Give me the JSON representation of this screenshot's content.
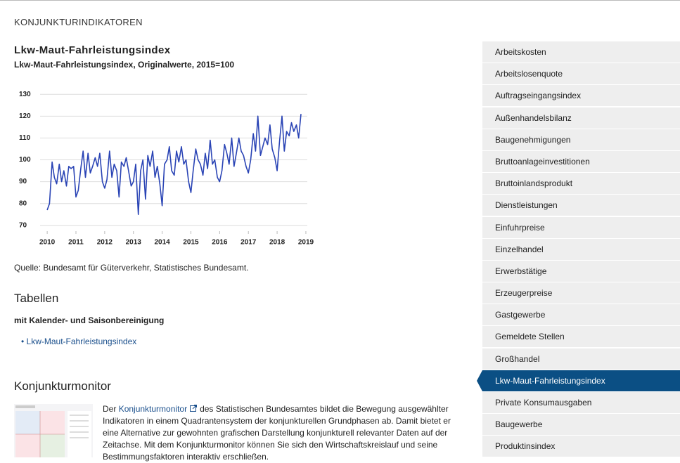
{
  "header": {
    "kicker": "KONJUNKTURINDIKATOREN"
  },
  "chart_data": {
    "type": "line",
    "title": "Lkw-Maut-Fahrleistungsindex",
    "subtitle": "Lkw-Maut-Fahrleistungsindex, Originalwerte, 2015=100",
    "x": [
      2010,
      2010.08,
      2010.17,
      2010.25,
      2010.33,
      2010.42,
      2010.5,
      2010.58,
      2010.67,
      2010.75,
      2010.83,
      2010.92,
      2011,
      2011.08,
      2011.17,
      2011.25,
      2011.33,
      2011.42,
      2011.5,
      2011.58,
      2011.67,
      2011.75,
      2011.83,
      2011.92,
      2012,
      2012.08,
      2012.17,
      2012.25,
      2012.33,
      2012.42,
      2012.5,
      2012.58,
      2012.67,
      2012.75,
      2012.83,
      2012.92,
      2013,
      2013.08,
      2013.17,
      2013.25,
      2013.33,
      2013.42,
      2013.5,
      2013.58,
      2013.67,
      2013.75,
      2013.83,
      2013.92,
      2014,
      2014.08,
      2014.17,
      2014.25,
      2014.33,
      2014.42,
      2014.5,
      2014.58,
      2014.67,
      2014.75,
      2014.83,
      2014.92,
      2015,
      2015.08,
      2015.17,
      2015.25,
      2015.33,
      2015.42,
      2015.5,
      2015.58,
      2015.67,
      2015.75,
      2015.83,
      2015.92,
      2016,
      2016.08,
      2016.17,
      2016.25,
      2016.33,
      2016.42,
      2016.5,
      2016.58,
      2016.67,
      2016.75,
      2016.83,
      2016.92,
      2017,
      2017.08,
      2017.17,
      2017.25,
      2017.33,
      2017.42,
      2017.5,
      2017.58,
      2017.67,
      2017.75,
      2017.83,
      2017.92,
      2018,
      2018.08,
      2018.17,
      2018.25,
      2018.33,
      2018.42,
      2018.5,
      2018.58,
      2018.67,
      2018.75,
      2018.83
    ],
    "series": [
      {
        "name": "Lkw-Maut-Fahrleistungsindex",
        "color": "#2a44b5",
        "values": [
          77,
          80,
          99,
          92,
          89,
          98,
          90,
          95,
          88,
          97,
          96,
          97,
          83,
          86,
          96,
          104,
          92,
          103,
          94,
          97,
          101,
          97,
          103,
          90,
          87,
          91,
          104,
          92,
          98,
          95,
          83,
          99,
          97,
          101,
          95,
          88,
          90,
          98,
          75,
          95,
          100,
          82,
          102,
          97,
          104,
          92,
          97,
          89,
          79,
          98,
          100,
          106,
          95,
          93,
          104,
          99,
          106,
          98,
          100,
          90,
          85,
          95,
          105,
          100,
          98,
          93,
          103,
          96,
          109,
          98,
          100,
          92,
          90,
          95,
          107,
          103,
          98,
          110,
          97,
          103,
          110,
          104,
          102,
          97,
          94,
          100,
          112,
          104,
          120,
          102,
          106,
          110,
          107,
          116,
          105,
          101,
          95,
          108,
          120,
          104,
          113,
          111,
          117,
          113,
          116,
          110,
          121
        ]
      }
    ],
    "xlim": [
      2009.85,
      2019.05
    ],
    "xticks": [
      2010,
      2011,
      2012,
      2013,
      2014,
      2015,
      2016,
      2017,
      2018,
      2019
    ],
    "ylim": [
      68,
      132
    ],
    "yticks": [
      70,
      80,
      90,
      100,
      110,
      120,
      130
    ],
    "grid": true
  },
  "source": "Quelle: Bundesamt für Güterverkehr, Statistisches Bundesamt.",
  "tables": {
    "heading": "Tabellen",
    "subheading": "mit Kalender- und Saisonbereinigung",
    "links": [
      "Lkw-Maut-Fahrleistungsindex"
    ]
  },
  "monitor": {
    "heading": "Konjunkturmonitor",
    "before": "Der",
    "link": "Konjunkturmonitor",
    "lines": [
      "des Statistischen Bundesamtes bildet die Bewegung ausgewählter",
      "Indikatoren in einem Quadrantensystem der konjunkturellen Grundphasen ab. Damit bietet er",
      "eine Alternative zur gewohnten grafischen Darstellung konjunkturell relevanter Daten auf der",
      "Zeitachse. Mit dem Konjunkturmonitor können Sie sich den Wirtschaftskreislauf und seine",
      "Bestimmungsfaktoren interaktiv erschließen."
    ]
  },
  "sidebar": [
    {
      "label": "Arbeitskosten"
    },
    {
      "label": "Arbeitslosenquote"
    },
    {
      "label": "Auftragseingangsindex"
    },
    {
      "label": "Außenhandelsbilanz"
    },
    {
      "label": "Baugenehmigungen"
    },
    {
      "label": "Bruttoanlageinvestitionen"
    },
    {
      "label": "Bruttoinlandsprodukt"
    },
    {
      "label": "Dienstleistungen"
    },
    {
      "label": "Einfuhrpreise"
    },
    {
      "label": "Einzelhandel"
    },
    {
      "label": "Erwerbstätige"
    },
    {
      "label": "Erzeugerpreise"
    },
    {
      "label": "Gastgewerbe"
    },
    {
      "label": "Gemeldete Stellen"
    },
    {
      "label": "Großhandel"
    },
    {
      "label": "Lkw-Maut-Fahrleistungsindex",
      "active": true
    },
    {
      "label": "Private Konsumausgaben"
    },
    {
      "label": "Baugewerbe"
    },
    {
      "label": "Produktinsindex"
    }
  ]
}
